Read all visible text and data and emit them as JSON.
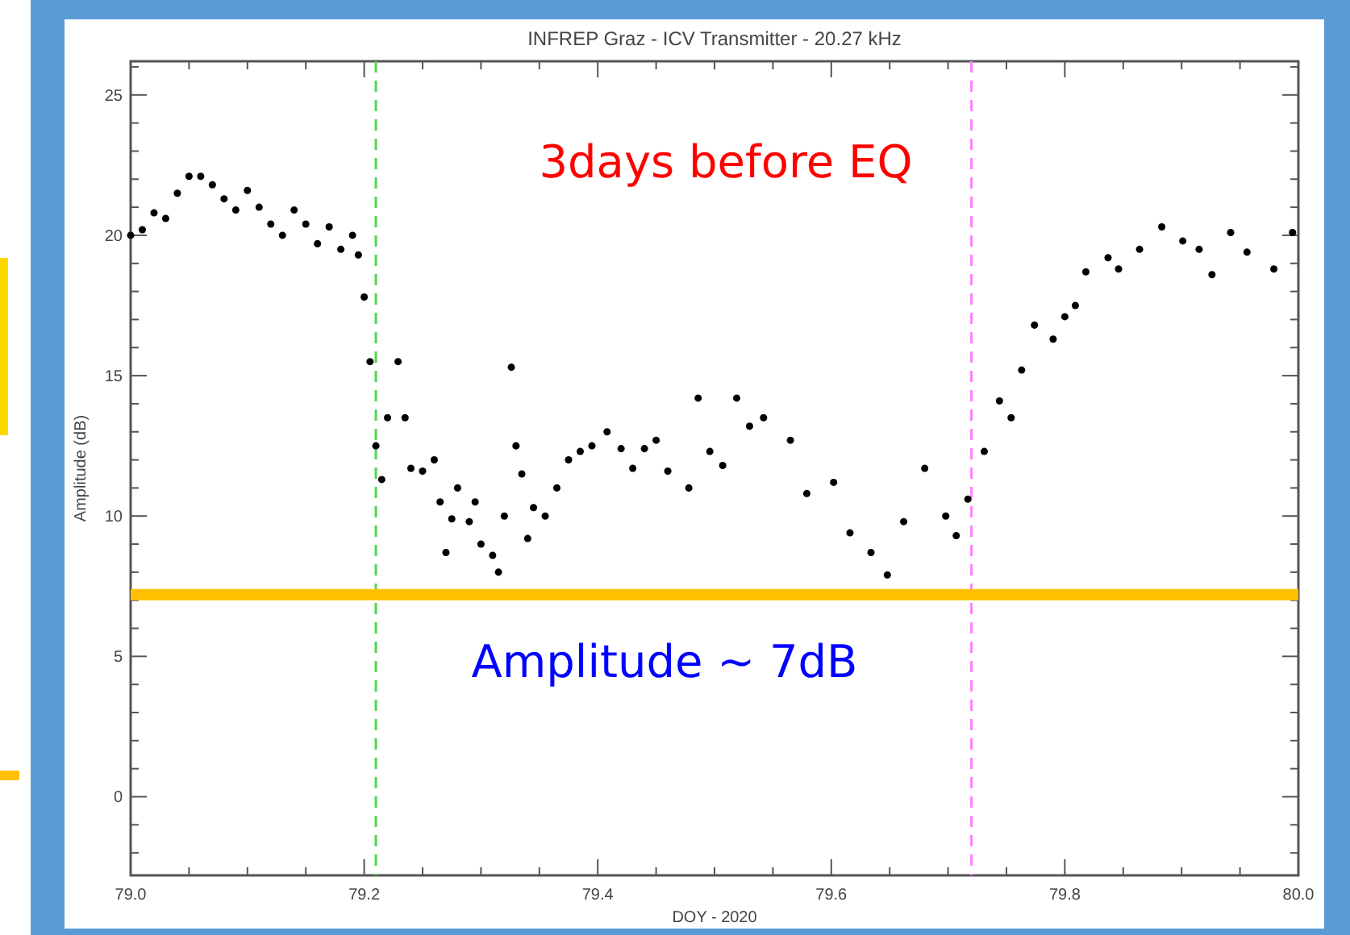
{
  "chart_data": {
    "type": "scatter",
    "title": "INFREP Graz -  ICV Transmitter - 20.27 kHz",
    "xlabel": "DOY - 2020",
    "ylabel": "Amplitude (dB)",
    "annotations": [
      "3days before EQ",
      "Amplitude ~ 7dB"
    ],
    "marker": "circle",
    "grid": false,
    "xlim": [
      79.0,
      80.0
    ],
    "ylim": [
      -2.8,
      26.2
    ],
    "xticks": [
      {
        "value": 79.0,
        "label": "79.0"
      },
      {
        "value": 79.05,
        "label": null
      },
      {
        "value": 79.1,
        "label": null
      },
      {
        "value": 79.15,
        "label": null
      },
      {
        "value": 79.2,
        "label": "79.2"
      },
      {
        "value": 79.25,
        "label": null
      },
      {
        "value": 79.3,
        "label": null
      },
      {
        "value": 79.35,
        "label": null
      },
      {
        "value": 79.4,
        "label": "79.4"
      },
      {
        "value": 79.45,
        "label": null
      },
      {
        "value": 79.5,
        "label": null
      },
      {
        "value": 79.55,
        "label": null
      },
      {
        "value": 79.6,
        "label": "79.6"
      },
      {
        "value": 79.65,
        "label": null
      },
      {
        "value": 79.7,
        "label": null
      },
      {
        "value": 79.75,
        "label": null
      },
      {
        "value": 79.8,
        "label": "79.8"
      },
      {
        "value": 79.85,
        "label": null
      },
      {
        "value": 79.9,
        "label": null
      },
      {
        "value": 79.95,
        "label": null
      },
      {
        "value": 80.0,
        "label": "80.0"
      }
    ],
    "yticks": [
      {
        "value": -2,
        "label": null
      },
      {
        "value": -1,
        "label": null
      },
      0,
      {
        "value": 1,
        "label": null
      },
      {
        "value": 2,
        "label": null
      },
      {
        "value": 3,
        "label": null
      },
      {
        "value": 4,
        "label": null
      },
      5,
      {
        "value": 6,
        "label": null
      },
      {
        "value": 7,
        "label": null
      },
      {
        "value": 8,
        "label": null
      },
      {
        "value": 9,
        "label": null
      },
      10,
      {
        "value": 11,
        "label": null
      },
      {
        "value": 12,
        "label": null
      },
      {
        "value": 13,
        "label": null
      },
      {
        "value": 14,
        "label": null
      },
      15,
      {
        "value": 16,
        "label": null
      },
      {
        "value": 17,
        "label": null
      },
      {
        "value": 18,
        "label": null
      },
      {
        "value": 19,
        "label": null
      },
      20,
      {
        "value": 21,
        "label": null
      },
      {
        "value": 22,
        "label": null
      },
      {
        "value": 23,
        "label": null
      },
      {
        "value": 24,
        "label": null
      },
      25,
      {
        "value": 26,
        "label": null
      }
    ],
    "ref_lines": [
      {
        "axis": "x",
        "value": 79.21,
        "color": "#4cd94c",
        "line_style": "dashed"
      },
      {
        "axis": "x",
        "value": 79.72,
        "color": "#ff80ff",
        "line_style": "dashed"
      },
      {
        "axis": "y",
        "value": 7.2,
        "color": "#ffc000",
        "line_style": "solid"
      }
    ],
    "series": [
      {
        "color": "#000000",
        "x": [
          79.0,
          79.01,
          79.02,
          79.03,
          79.04,
          79.05,
          79.06,
          79.07,
          79.08,
          79.09,
          79.1,
          79.11,
          79.12,
          79.13,
          79.14,
          79.15,
          79.16,
          79.17,
          79.18,
          79.19,
          79.195,
          79.2,
          79.205,
          79.21,
          79.215,
          79.22,
          79.229,
          79.235,
          79.24,
          79.25,
          79.26,
          79.265,
          79.27,
          79.275,
          79.28,
          79.29,
          79.295,
          79.3,
          79.31,
          79.315,
          79.32,
          79.326,
          79.33,
          79.335,
          79.34,
          79.345,
          79.355,
          79.365,
          79.375,
          79.385,
          79.395,
          79.408,
          79.42,
          79.43,
          79.44,
          79.45,
          79.46,
          79.478,
          79.486,
          79.496,
          79.507,
          79.519,
          79.53,
          79.542,
          79.565,
          79.579,
          79.602,
          79.616,
          79.634,
          79.648,
          79.662,
          79.68,
          79.698,
          79.707,
          79.717,
          79.731,
          79.744,
          79.754,
          79.763,
          79.774,
          79.79,
          79.8,
          79.809,
          79.818,
          79.837,
          79.846,
          79.864,
          79.883,
          79.901,
          79.915,
          79.926,
          79.942,
          79.956,
          79.979,
          79.995
        ],
        "values": [
          20.0,
          20.2,
          20.8,
          20.6,
          21.5,
          22.1,
          22.1,
          21.8,
          21.3,
          20.9,
          21.6,
          21.0,
          20.4,
          20.0,
          20.9,
          20.4,
          19.7,
          20.3,
          19.5,
          20.0,
          19.3,
          17.8,
          15.5,
          12.5,
          11.3,
          13.5,
          15.5,
          13.5,
          11.7,
          11.6,
          12.0,
          10.5,
          8.7,
          9.9,
          11.0,
          9.8,
          10.5,
          9.0,
          8.6,
          8.0,
          10.0,
          15.3,
          12.5,
          11.5,
          9.2,
          10.3,
          10.0,
          11.0,
          12.0,
          12.3,
          12.5,
          13.0,
          12.4,
          11.7,
          12.4,
          12.7,
          11.6,
          11.0,
          14.2,
          12.3,
          11.8,
          14.2,
          13.2,
          13.5,
          12.7,
          10.8,
          11.2,
          9.4,
          8.7,
          7.9,
          9.8,
          11.7,
          10.0,
          9.3,
          10.6,
          12.3,
          14.1,
          13.5,
          15.2,
          16.8,
          16.3,
          17.1,
          17.5,
          18.7,
          19.2,
          18.8,
          19.5,
          20.3,
          19.8,
          19.5,
          18.6,
          20.1,
          19.4,
          18.8,
          20.1
        ]
      }
    ]
  }
}
